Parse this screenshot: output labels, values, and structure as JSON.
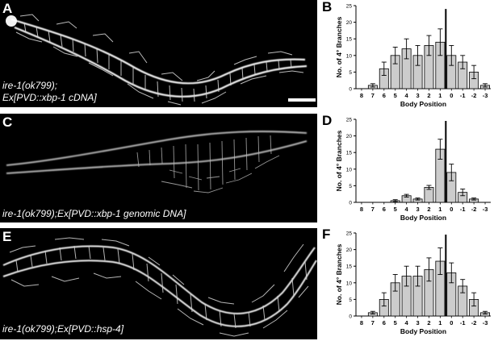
{
  "panels": [
    {
      "letter": "A",
      "caption_lines": [
        "ire-1(ok799);",
        "Ex[PVD::xbp-1 cDNA]"
      ]
    },
    {
      "letter": "C",
      "caption_lines": [
        "ire-1(ok799);Ex[PVD::xbp-1 genomic DNA]"
      ]
    },
    {
      "letter": "E",
      "caption_lines": [
        "ire-1(ok799);Ex[PVD::hsp-4]"
      ]
    }
  ],
  "chart_data": [
    {
      "letter": "B",
      "type": "bar",
      "categories": [
        "8",
        "7",
        "6",
        "5",
        "4",
        "3",
        "2",
        "1",
        "0",
        "-1",
        "-2",
        "-3"
      ],
      "values": [
        0,
        1,
        6,
        10,
        12,
        10,
        13,
        14,
        10,
        8,
        5,
        1
      ],
      "errors": [
        0,
        0.5,
        2,
        2.5,
        3,
        3,
        3,
        4,
        3,
        2,
        2,
        0.5
      ],
      "xlabel": "Body Position",
      "ylabel": "No. of 4° Branches",
      "ylim": [
        0,
        25
      ],
      "yticks": [
        "0",
        "5",
        "10",
        "15",
        "20",
        "25"
      ],
      "marker_category": "1",
      "marker_top": 24,
      "grid": false
    },
    {
      "letter": "D",
      "type": "bar",
      "categories": [
        "8",
        "7",
        "6",
        "5",
        "4",
        "3",
        "2",
        "1",
        "0",
        "-1",
        "-2",
        "-3"
      ],
      "values": [
        0,
        0,
        0,
        0.5,
        2,
        1,
        4.5,
        16,
        9,
        3,
        1,
        0
      ],
      "errors": [
        0,
        0,
        0,
        0.3,
        0.4,
        0.3,
        0.6,
        3,
        2.5,
        1,
        0.3,
        0
      ],
      "xlabel": "Body Position",
      "ylabel": "No. of 4° Branches",
      "ylim": [
        0,
        25
      ],
      "yticks": [
        "0",
        "5",
        "10",
        "15",
        "20",
        "25"
      ],
      "marker_category": "1",
      "marker_top": 24.5,
      "grid": false
    },
    {
      "letter": "F",
      "type": "bar",
      "categories": [
        "8",
        "7",
        "6",
        "5",
        "4",
        "3",
        "2",
        "1",
        "0",
        "-1",
        "-2",
        "-3"
      ],
      "values": [
        0,
        1,
        5,
        10,
        12,
        12,
        14,
        16.5,
        13,
        9,
        5,
        1
      ],
      "errors": [
        0,
        0.4,
        2,
        2.5,
        3,
        3,
        3.5,
        4,
        3,
        2,
        2,
        0.4
      ],
      "xlabel": "Body Position",
      "ylabel": "No. of 4° Branches",
      "ylim": [
        0,
        25
      ],
      "yticks": [
        "0",
        "5",
        "10",
        "15",
        "20",
        "25"
      ],
      "marker_category": "1",
      "marker_top": 24.5,
      "grid": false
    }
  ]
}
